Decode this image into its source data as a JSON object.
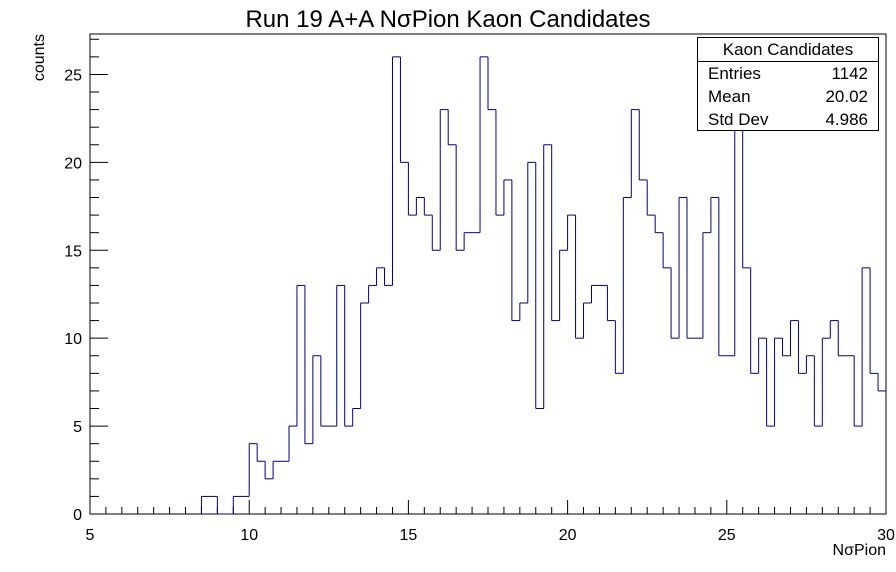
{
  "chart_data": {
    "type": "histogram",
    "title": "Run 19 A+A NσPion Kaon Candidates",
    "xlabel": "NσPion",
    "ylabel": "counts",
    "xlim": [
      5,
      30
    ],
    "ylim": [
      0,
      27.3
    ],
    "x_ticks": [
      5,
      10,
      15,
      20,
      25,
      30
    ],
    "y_ticks": [
      0,
      5,
      10,
      15,
      20,
      25
    ],
    "bin_low": 8.5,
    "bin_width": 0.25,
    "values": [
      1,
      1,
      0,
      0,
      1,
      1,
      4,
      3,
      2,
      3,
      3,
      5,
      13,
      4,
      9,
      5,
      5,
      13,
      5,
      6,
      12,
      13,
      14,
      13,
      26,
      20,
      17,
      18,
      17,
      15,
      23,
      21,
      15,
      16,
      16,
      26,
      23,
      17,
      19,
      11,
      12,
      20,
      6,
      21,
      11,
      15,
      17,
      10,
      12,
      13,
      13,
      11,
      8,
      18,
      23,
      19,
      17,
      16,
      14,
      10,
      18,
      10,
      10,
      16,
      18,
      9,
      9,
      22,
      14,
      8,
      10,
      5,
      10,
      9,
      11,
      8,
      9,
      5,
      10,
      11,
      9,
      9,
      5,
      14,
      8,
      7
    ],
    "line_color": "#000080",
    "stats": {
      "header": "Kaon Candidates",
      "rows": [
        {
          "label": "Entries",
          "value": "1142"
        },
        {
          "label": "Mean",
          "value": "20.02"
        },
        {
          "label": "Std Dev",
          "value": "4.986"
        }
      ]
    }
  }
}
